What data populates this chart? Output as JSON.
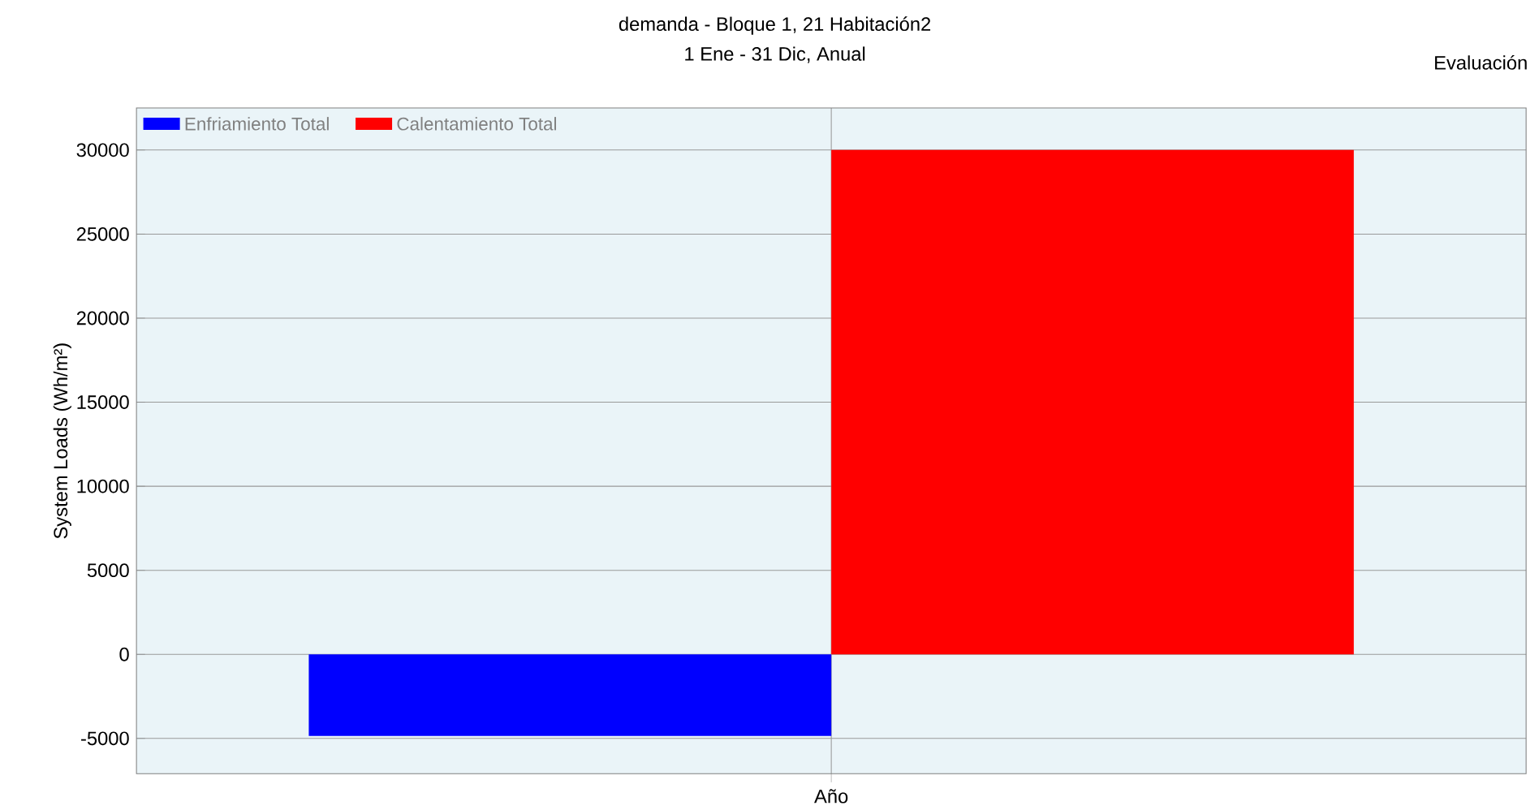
{
  "chart_data": {
    "type": "bar",
    "title": "demanda - Bloque 1, 21 Habitación2",
    "subtitle": "1 Ene - 31 Dic, Anual",
    "ylabel": "System Loads (Wh/m²)",
    "annotations": [
      "Evaluación"
    ],
    "categories": [
      "Año"
    ],
    "series": [
      {
        "name": "Enfriamiento Total",
        "color": "#0000ff",
        "values": [
          -4850
        ]
      },
      {
        "name": "Calentamiento Total",
        "color": "#ff0000",
        "values": [
          30000
        ]
      }
    ],
    "ylim": [
      -7100,
      32500
    ],
    "yticks": [
      -5000,
      0,
      5000,
      10000,
      15000,
      20000,
      25000,
      30000
    ],
    "grid": "y",
    "legend": "top left"
  }
}
